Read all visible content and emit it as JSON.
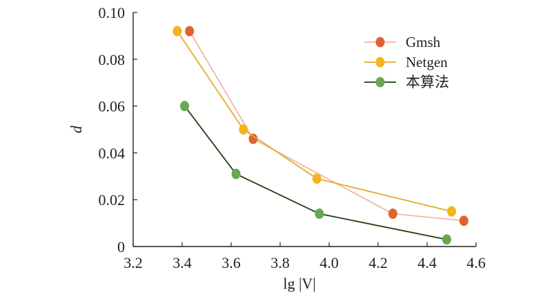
{
  "chart_data": {
    "type": "line",
    "xlabel": "lg |V|",
    "ylabel": "d",
    "xlim": [
      3.2,
      4.6
    ],
    "ylim": [
      0,
      0.1
    ],
    "xticks": [
      "3.2",
      "3.4",
      "3.6",
      "3.8",
      "4.0",
      "4.2",
      "4.4",
      "4.6"
    ],
    "yticks": [
      "0",
      "0.02",
      "0.04",
      "0.06",
      "0.08",
      "0.10"
    ],
    "grid": false,
    "legend_position": "top-right",
    "series": [
      {
        "name": "Gmsh",
        "line_color": "#f2b5a6",
        "marker_color": "#e2622f",
        "points": [
          [
            3.43,
            0.092
          ],
          [
            3.69,
            0.046
          ],
          [
            4.26,
            0.014
          ],
          [
            4.55,
            0.011
          ]
        ]
      },
      {
        "name": "Netgen",
        "line_color": "#e8a82a",
        "marker_color": "#f4b41c",
        "points": [
          [
            3.38,
            0.092
          ],
          [
            3.65,
            0.05
          ],
          [
            3.95,
            0.029
          ],
          [
            4.5,
            0.015
          ]
        ]
      },
      {
        "name": "本算法",
        "line_color": "#1f3d12",
        "marker_color": "#6aa84f",
        "points": [
          [
            3.41,
            0.06
          ],
          [
            3.62,
            0.031
          ],
          [
            3.96,
            0.014
          ],
          [
            4.48,
            0.003
          ]
        ]
      }
    ]
  }
}
